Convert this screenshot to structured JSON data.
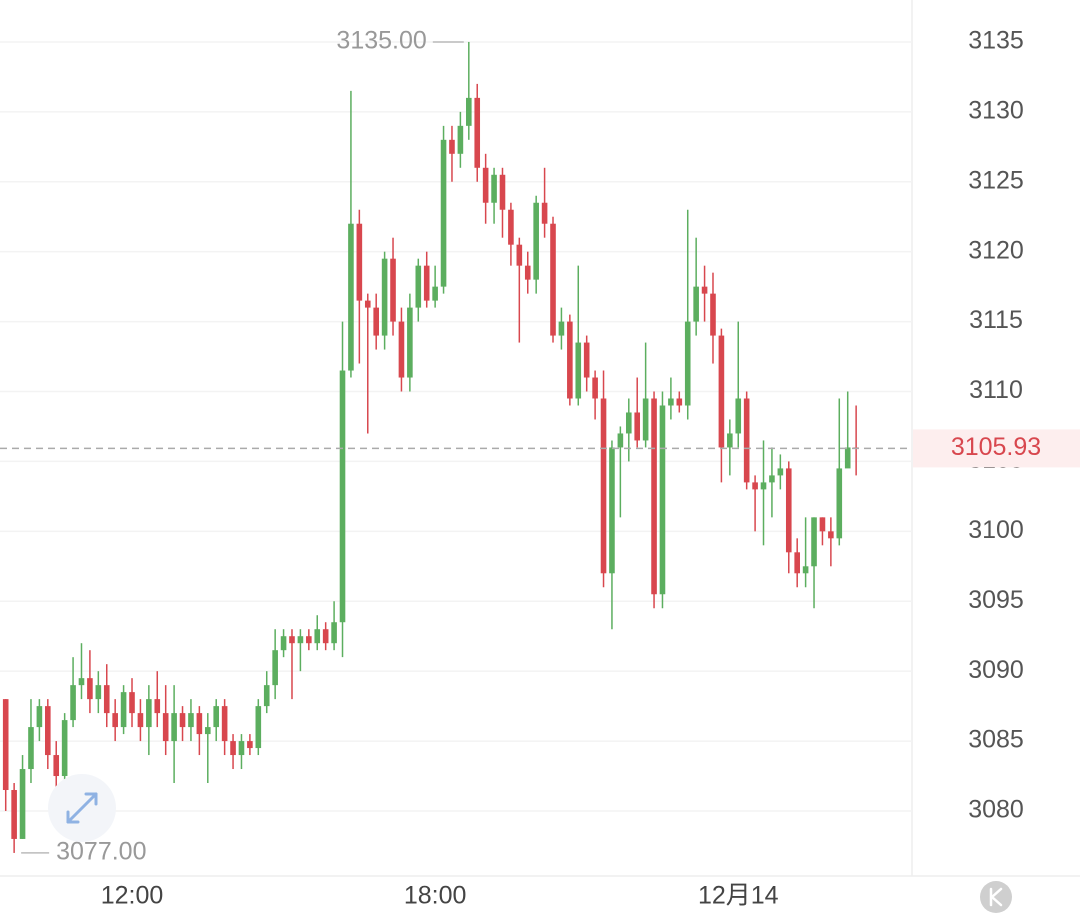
{
  "chart_data": {
    "type": "candlestick",
    "categories": [
      null,
      null,
      null,
      null,
      null,
      null,
      null,
      null,
      null,
      null,
      null,
      null,
      null,
      null,
      null,
      "12:00",
      null,
      null,
      null,
      null,
      null,
      null,
      null,
      null,
      null,
      null,
      null,
      null,
      null,
      null,
      null,
      null,
      null,
      null,
      null,
      null,
      null,
      null,
      null,
      null,
      null,
      null,
      null,
      null,
      null,
      null,
      null,
      null,
      null,
      null,
      null,
      "18:00",
      null,
      null,
      null,
      null,
      null,
      null,
      null,
      null,
      null,
      null,
      null,
      null,
      null,
      null,
      null,
      null,
      null,
      null,
      null,
      null,
      null,
      null,
      null,
      null,
      null,
      null,
      null,
      null,
      null,
      null,
      null,
      null,
      null,
      null,
      null,
      "12月14",
      null,
      null,
      null,
      null,
      null,
      null,
      null,
      null,
      null,
      null,
      null,
      null,
      null,
      null
    ],
    "open": [
      3088,
      3081.5,
      3078,
      3083,
      3086,
      3087.5,
      3084,
      3082.5,
      3086.5,
      3089,
      3089.5,
      3088,
      3089,
      3087,
      3086,
      3088.5,
      3087,
      3086,
      3088,
      3087,
      3085,
      3087,
      3086,
      3087,
      3085.5,
      3086,
      3087.5,
      3085,
      3084,
      3085,
      3084.5,
      3087.5,
      3089,
      3091.5,
      3092.5,
      3092,
      3092.5,
      3092,
      3093,
      3092,
      3093.5,
      3111.5,
      3122,
      3116.5,
      3116,
      3114,
      3119.5,
      3115,
      3111,
      3116,
      3119,
      3116.5,
      3117.5,
      3128,
      3127,
      3129,
      3131,
      3126,
      3123.5,
      3125.5,
      3123,
      3120.5,
      3119,
      3118,
      3123.5,
      3122,
      3114,
      3115,
      3109.5,
      3113.5,
      3111,
      3109.5,
      3097,
      3106,
      3107,
      3108.5,
      3106.5,
      3109.5,
      3095.5,
      3109,
      3109.5,
      3109,
      3115,
      3117.5,
      3117,
      3114,
      3106,
      3107,
      3109.5,
      3103.5,
      3103,
      3103.5,
      3104,
      3104.5,
      3098.5,
      3097,
      3097.5,
      3101,
      3100,
      3099.5,
      3104.5,
      3106
    ],
    "high": [
      3088,
      3082,
      3084,
      3088,
      3088,
      3088,
      3085,
      3087,
      3091,
      3092,
      3091.5,
      3090,
      3090.5,
      3088,
      3089,
      3089.5,
      3088,
      3089,
      3090,
      3089,
      3089,
      3087.5,
      3088,
      3087.5,
      3087,
      3088,
      3088,
      3085.5,
      3085.5,
      3085.5,
      3088,
      3090,
      3093,
      3093,
      3093,
      3093,
      3093,
      3094,
      3093.5,
      3095,
      3115,
      3131.5,
      3123,
      3117,
      3117,
      3120,
      3121,
      3116,
      3117,
      3119.5,
      3120,
      3119,
      3129,
      3129,
      3130,
      3135,
      3132,
      3127,
      3126,
      3126,
      3123.5,
      3121,
      3120,
      3124,
      3126,
      3122.5,
      3116,
      3115.5,
      3119,
      3114,
      3111.5,
      3111.5,
      3106.5,
      3107.5,
      3109.5,
      3111,
      3113.5,
      3110,
      3110,
      3111,
      3110,
      3123,
      3121,
      3119,
      3118.5,
      3114.5,
      3108,
      3115,
      3110,
      3104,
      3106.5,
      3106,
      3105.5,
      3105,
      3099.5,
      3101,
      3101,
      3101,
      3101,
      3109.5,
      3110,
      3109
    ],
    "low": [
      3080,
      3077,
      3078,
      3082,
      3085,
      3083,
      3081,
      3082,
      3086,
      3088,
      3087,
      3087,
      3086,
      3085,
      3085.5,
      3086,
      3085,
      3084,
      3086,
      3084,
      3082,
      3085,
      3085,
      3084,
      3082,
      3085,
      3084,
      3083,
      3083,
      3084,
      3084,
      3087,
      3088,
      3091,
      3088,
      3090,
      3091.5,
      3091.5,
      3091.5,
      3091.5,
      3091,
      3111,
      3112,
      3107,
      3113,
      3113,
      3114,
      3110,
      3110,
      3115,
      3116,
      3116,
      3117,
      3125,
      3126,
      3128,
      3125,
      3122,
      3122,
      3121,
      3119,
      3113.5,
      3117,
      3117,
      3121,
      3113.5,
      3113,
      3109,
      3109,
      3110,
      3108,
      3096,
      3093,
      3101,
      3105,
      3106,
      3106,
      3094.5,
      3094.5,
      3108,
      3108.5,
      3108,
      3114,
      3115,
      3112,
      3103.5,
      3104,
      3106,
      3103,
      3100,
      3099,
      3101,
      3103,
      3097,
      3096,
      3096,
      3094.5,
      3099,
      3097.5,
      3099,
      3105,
      3104
    ],
    "close": [
      3081.5,
      3078,
      3083,
      3086,
      3087.5,
      3084,
      3082.5,
      3086.5,
      3089,
      3089.5,
      3088,
      3089,
      3087,
      3086,
      3088.5,
      3087,
      3086,
      3088,
      3087,
      3085,
      3087,
      3086,
      3087,
      3085.5,
      3086,
      3087.5,
      3085,
      3084,
      3085,
      3084.5,
      3087.5,
      3089,
      3091.5,
      3092.5,
      3092,
      3092.5,
      3092,
      3093,
      3092,
      3093.5,
      3111.5,
      3122,
      3116.5,
      3116,
      3114,
      3119.5,
      3115,
      3111,
      3116,
      3119,
      3116.5,
      3117.5,
      3128,
      3127,
      3129,
      3131,
      3126,
      3123.5,
      3125.5,
      3123,
      3120.5,
      3119,
      3118,
      3123.5,
      3122,
      3114,
      3115,
      3109.5,
      3113.5,
      3111,
      3109.5,
      3097,
      3106,
      3107,
      3108.5,
      3106.5,
      3109.5,
      3095.5,
      3109,
      3109.5,
      3109,
      3115,
      3117.5,
      3117,
      3114,
      3106,
      3107,
      3109.5,
      3103.5,
      3103,
      3103.5,
      3104,
      3104.5,
      3098.5,
      3097,
      3097.5,
      3101,
      3100,
      3099.5,
      3104.5,
      3106,
      3105.93
    ],
    "up_color": "#5cae5f",
    "down_color": "#d8474e",
    "ylim": [
      3075.35,
      3138
    ],
    "yticks": [
      3080,
      3085,
      3090,
      3095,
      3100,
      3105,
      3110,
      3115,
      3120,
      3125,
      3130,
      3135
    ],
    "grid": true,
    "annotations": [
      {
        "value": 3135,
        "label": "3135.00"
      },
      {
        "value": 3077,
        "label": "3077.00"
      }
    ],
    "last_price": 3105.93
  }
}
